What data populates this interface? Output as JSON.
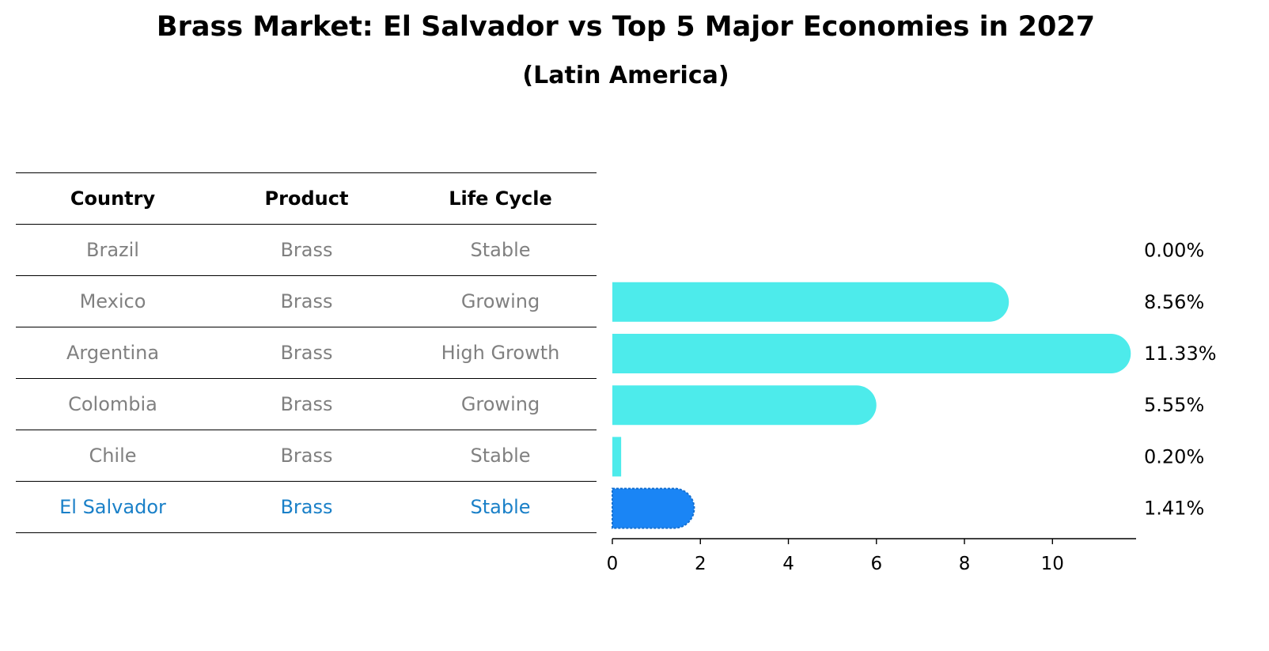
{
  "title": "Brass Market: El Salvador vs Top 5 Major Economies in 2027",
  "subtitle": "(Latin America)",
  "table": {
    "headers": [
      "Country",
      "Product",
      "Life Cycle"
    ],
    "rows": [
      {
        "country": "Brazil",
        "product": "Brass",
        "life_cycle": "Stable"
      },
      {
        "country": "Mexico",
        "product": "Brass",
        "life_cycle": "Growing"
      },
      {
        "country": "Argentina",
        "product": "Brass",
        "life_cycle": "High Growth"
      },
      {
        "country": "Colombia",
        "product": "Brass",
        "life_cycle": "Growing"
      },
      {
        "country": "Chile",
        "product": "Brass",
        "life_cycle": "Stable"
      },
      {
        "country": "El Salvador",
        "product": "Brass",
        "life_cycle": "Stable"
      }
    ]
  },
  "chart_data": {
    "type": "bar",
    "orientation": "horizontal",
    "title": "Brass Market: El Salvador vs Top 5 Major Economies in 2027",
    "subtitle": "(Latin America)",
    "categories": [
      "Brazil",
      "Mexico",
      "Argentina",
      "Colombia",
      "Chile",
      "El Salvador"
    ],
    "values": [
      0.0,
      8.56,
      11.33,
      5.55,
      0.2,
      1.41
    ],
    "value_labels": [
      "0.00%",
      "8.56%",
      "11.33%",
      "5.55%",
      "0.20%",
      "1.41%"
    ],
    "highlight": "El Salvador",
    "xlim": [
      0,
      11.9
    ],
    "xticks": [
      0,
      2,
      4,
      6,
      8,
      10
    ],
    "xlabel": "",
    "ylabel": "",
    "grid": false,
    "colors": {
      "default": "#4debeb",
      "highlight": "#1a85f5"
    }
  }
}
